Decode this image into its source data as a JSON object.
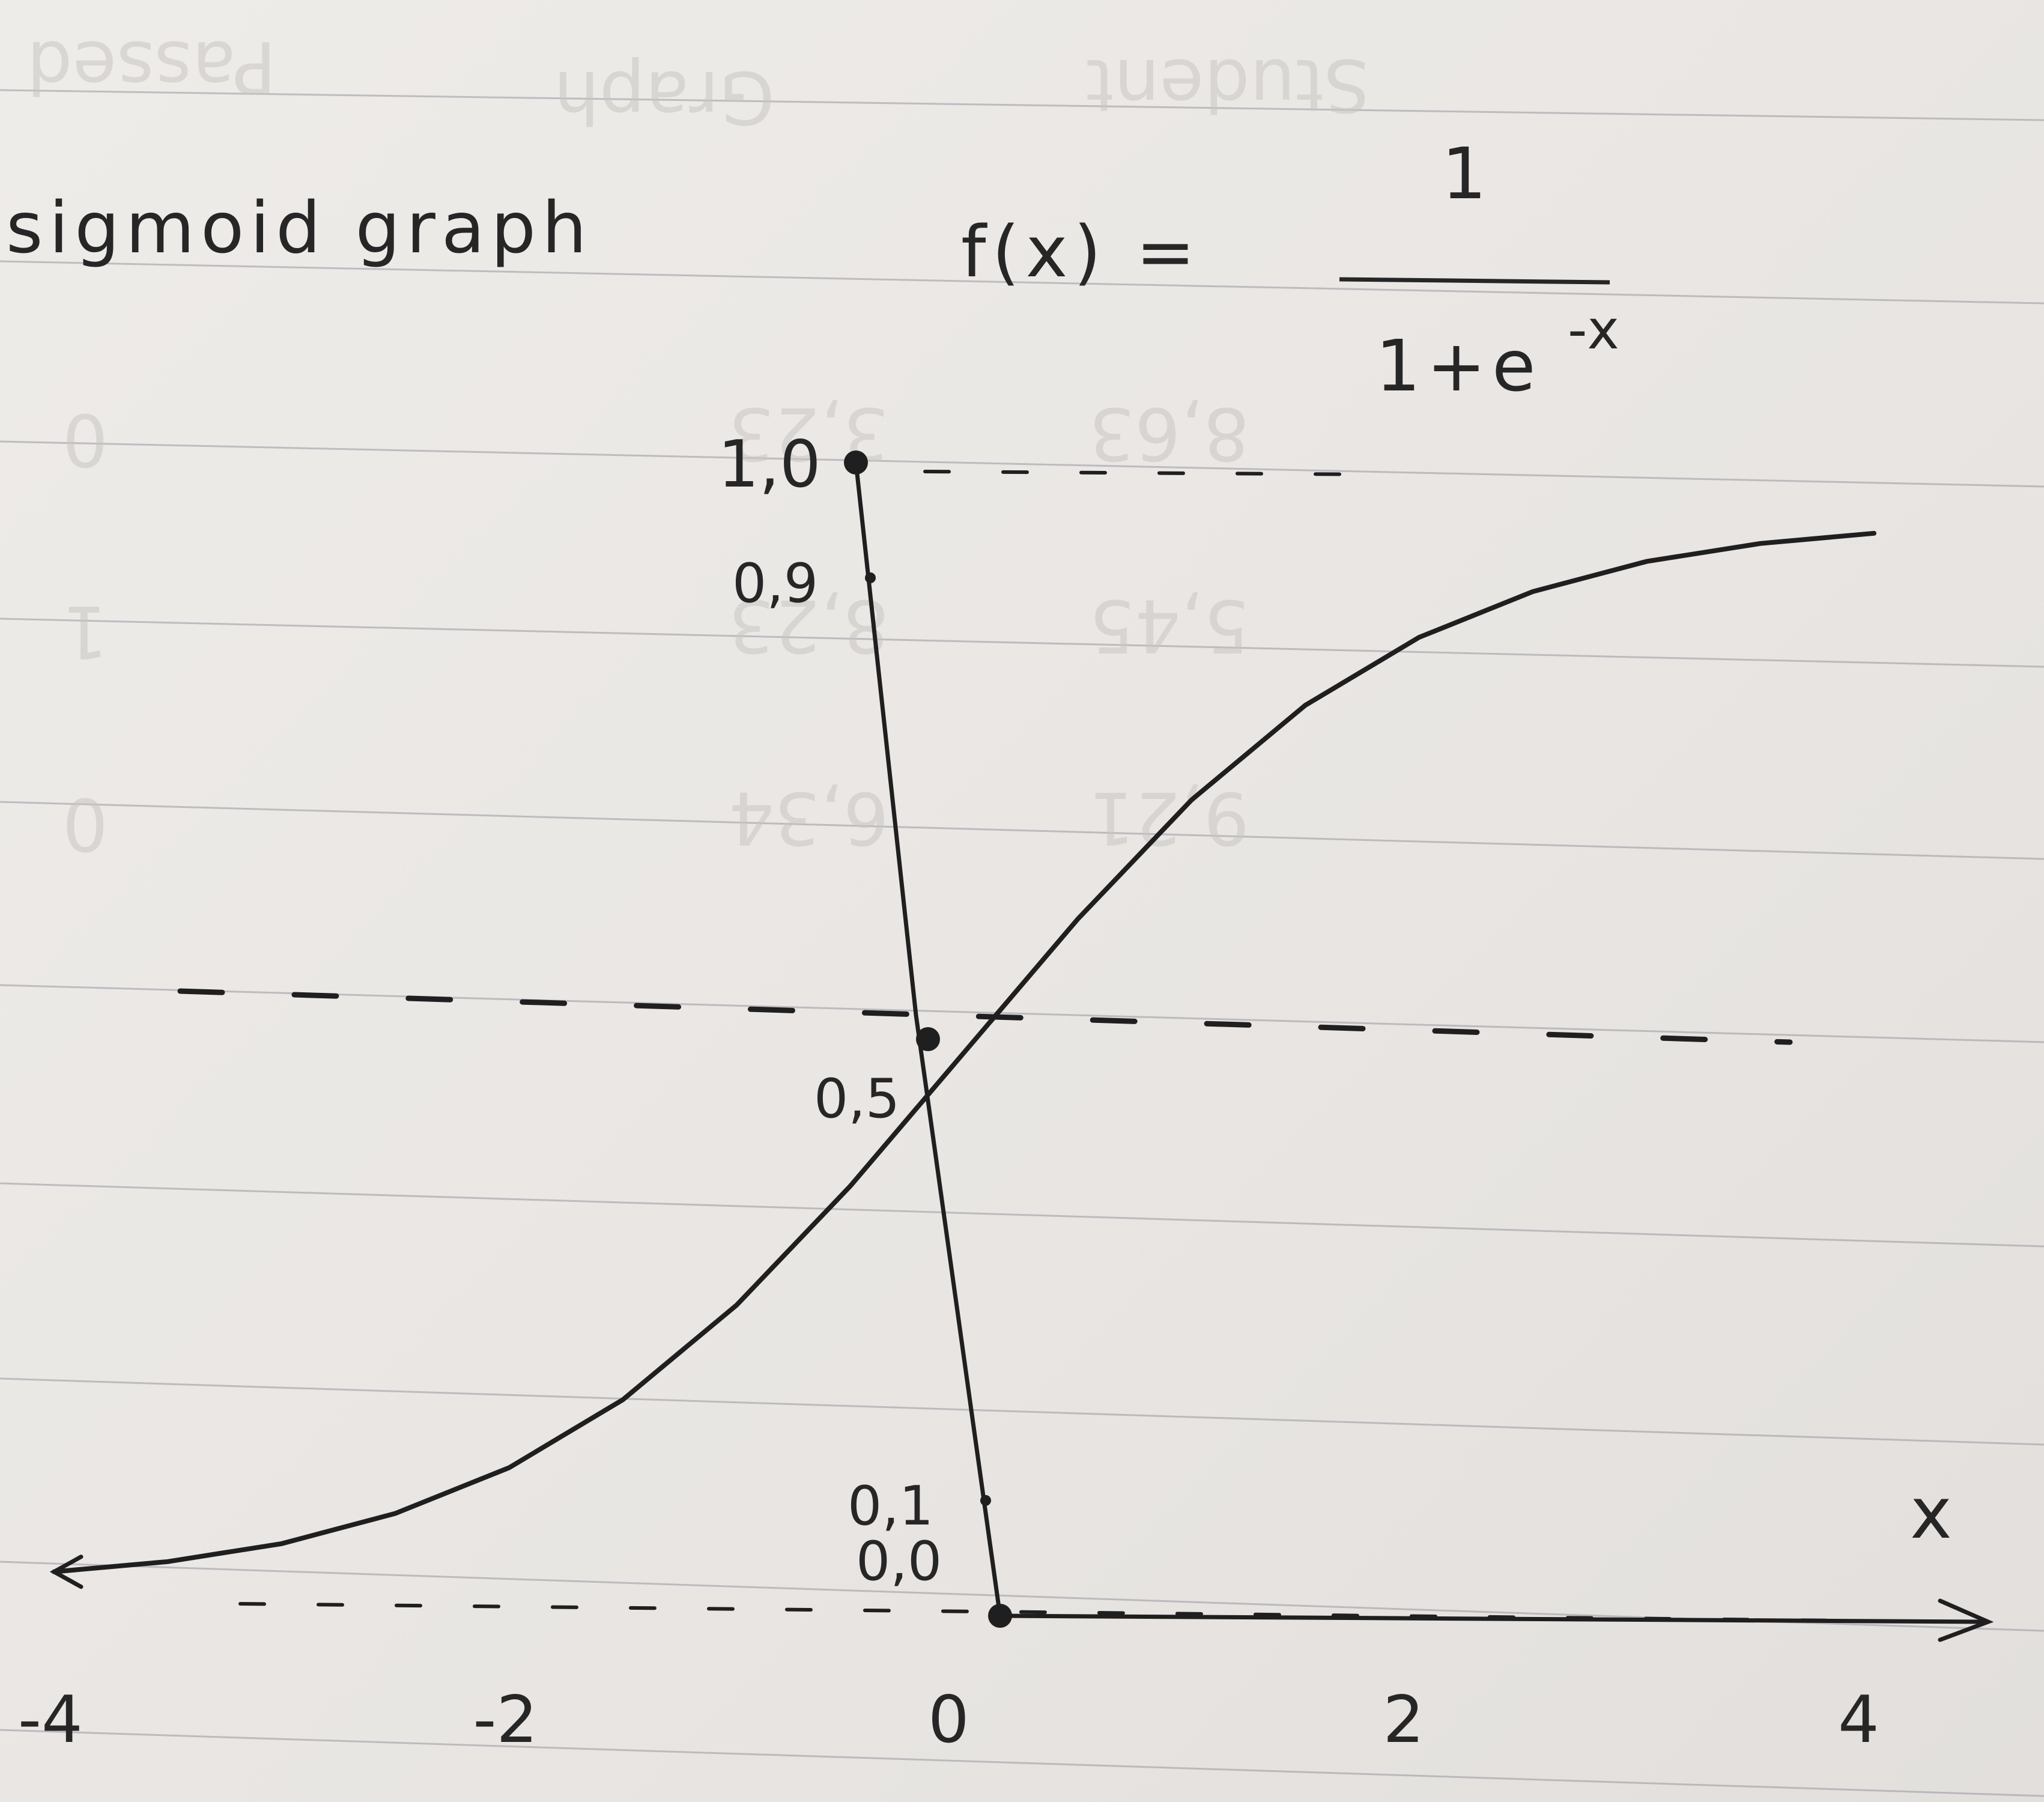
{
  "chart_data": {
    "type": "line",
    "title": "sigmoid graph",
    "formula": {
      "lhs": "f(x) =",
      "numerator": "1",
      "denominator": "1+e",
      "exponent": "-x"
    },
    "x_ticks": [
      "-4",
      "-2",
      "0",
      "2",
      "4"
    ],
    "x_axis_label": "x",
    "y_ticks": [
      {
        "label": "1,0",
        "value": 1.0
      },
      {
        "label": "0,9",
        "value": 0.9
      },
      {
        "label": "0,5",
        "value": 0.5
      },
      {
        "label": "0,1",
        "value": 0.1
      },
      {
        "label": "0,0",
        "value": 0.0
      }
    ],
    "xlim": [
      -4,
      4
    ],
    "ylim": [
      0,
      1
    ],
    "series": [
      {
        "x": [
          -4,
          -3.5,
          -3,
          -2.5,
          -2,
          -1.5,
          -1,
          -0.5,
          0,
          0.5,
          1,
          1.5,
          2,
          2.5,
          3,
          3.5,
          4
        ],
        "values": [
          0.018,
          0.029,
          0.047,
          0.076,
          0.119,
          0.182,
          0.269,
          0.378,
          0.5,
          0.622,
          0.731,
          0.818,
          0.881,
          0.924,
          0.953,
          0.971,
          0.982
        ]
      }
    ],
    "reference_lines": [
      {
        "y": 1.0,
        "style": "dashed"
      },
      {
        "y": 0.5,
        "style": "dashed"
      },
      {
        "y": 0.0,
        "style": "dashed"
      }
    ]
  },
  "background_notes": [
    "Student",
    "Graph",
    "Passed",
    "8,63",
    "3,23",
    "5,45",
    "8,23",
    "9,21",
    "6,34",
    "0",
    "1",
    "0"
  ]
}
